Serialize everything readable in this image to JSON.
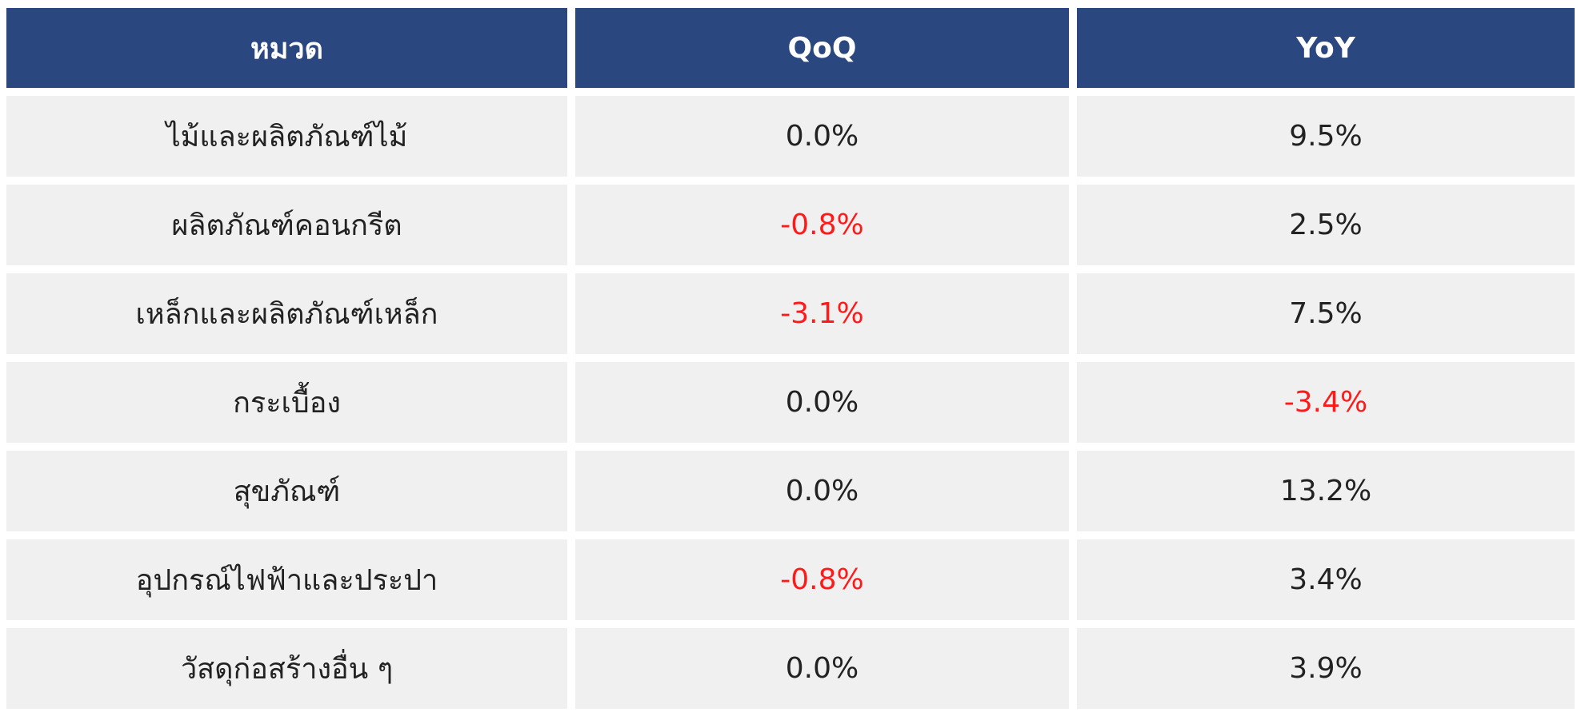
{
  "table": {
    "header": [
      "หมวด",
      "QoQ",
      "YoY"
    ],
    "rows": [
      [
        "ไม้และผลิตภัณฑ์ไม้",
        "0.0%",
        "9.5%"
      ],
      [
        "ผลิตภัณฑ์คอนกรีต",
        "-0.8%",
        "2.5%"
      ],
      [
        "เหล็กและผลิตภัณฑ์เหล็ก",
        "-3.1%",
        "7.5%"
      ],
      [
        "กระเบื้อง",
        "0.0%",
        "-3.4%"
      ],
      [
        "สุขภัณฑ์",
        "0.0%",
        "13.2%"
      ],
      [
        "อุปกรณ์ไฟฟ้าและประปา",
        "-0.8%",
        "3.4%"
      ],
      [
        "วัสดุก่อสร้างอื่น ๆ",
        "0.0%",
        "3.9%"
      ]
    ]
  }
}
